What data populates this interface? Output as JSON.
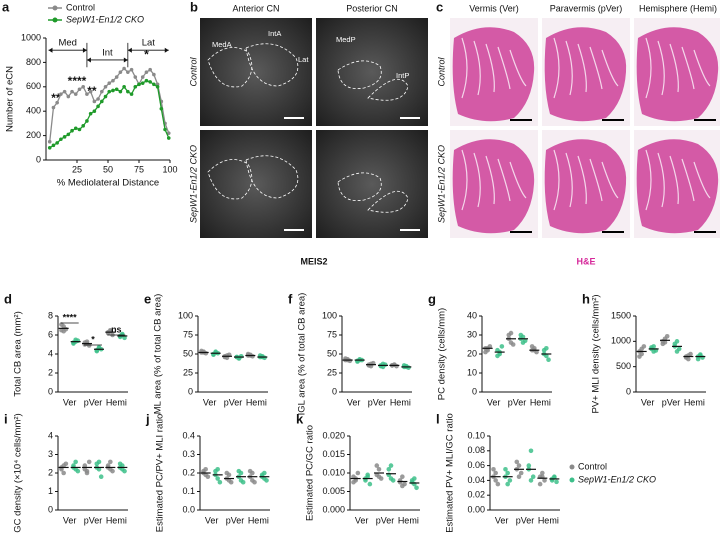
{
  "figures": [
    {
      "label": "b",
      "columns": [
        "Anterior CN",
        "Posterior CN"
      ],
      "rows": [
        "Control",
        "SepW1-En1/2 CKO"
      ],
      "regions": [
        "MedA",
        "IntA",
        "Lat",
        "MedP",
        "IntP"
      ],
      "stain": "MEIS2"
    },
    {
      "label": "c",
      "columns": [
        "Vermis (Ver)",
        "Paravermis (pVer)",
        "Hemisphere (Hemi)"
      ],
      "rows": [
        "Control",
        "SepW1-En1/2 CKO"
      ],
      "stain": "H&E"
    }
  ],
  "chart_data": [
    {
      "type": "line",
      "label": "a",
      "xlabel": "% Mediolateral Distance",
      "ylabel": "Number of eCN",
      "xlim": [
        0,
        100
      ],
      "xticks": [
        25,
        50,
        75,
        100
      ],
      "ylim": [
        0,
        1000
      ],
      "yticks": [
        0,
        200,
        400,
        600,
        800,
        1000
      ],
      "legend": "upper left",
      "regions": [
        "Med",
        "Int",
        "Lat"
      ],
      "annotations": [
        "**",
        "****",
        "**",
        "*"
      ],
      "x": [
        3,
        6,
        9,
        12,
        15,
        18,
        21,
        24,
        27,
        30,
        33,
        36,
        39,
        42,
        45,
        48,
        51,
        54,
        57,
        60,
        63,
        66,
        69,
        72,
        75,
        78,
        81,
        84,
        87,
        90,
        93,
        96,
        99
      ],
      "series": [
        {
          "name": "Control",
          "color": "#8a8a8a",
          "values": [
            150,
            430,
            470,
            540,
            560,
            520,
            560,
            540,
            580,
            600,
            540,
            560,
            480,
            500,
            560,
            600,
            630,
            650,
            680,
            720,
            750,
            720,
            740,
            680,
            620,
            680,
            720,
            740,
            700,
            620,
            480,
            300,
            220
          ]
        },
        {
          "name": "SepW1-En1/2 CKO",
          "color": "#1f9a2a",
          "values": [
            100,
            120,
            140,
            170,
            190,
            210,
            240,
            260,
            250,
            280,
            320,
            380,
            400,
            440,
            480,
            520,
            560,
            570,
            580,
            560,
            600,
            560,
            540,
            600,
            620,
            630,
            650,
            640,
            620,
            600,
            420,
            250,
            180
          ]
        }
      ]
    },
    {
      "type": "dot",
      "label": "d",
      "ylabel": "Total CB area (mm²)",
      "categories": [
        "Ver",
        "pVer",
        "Hemi"
      ],
      "ylim": [
        0,
        8
      ],
      "yticks": [
        0,
        2,
        4,
        6,
        8
      ],
      "annotations": [
        "****",
        "*",
        "ns"
      ],
      "series": [
        {
          "color": "#8a8a8a",
          "values": [
            [
              6.5,
              6.9,
              6.6,
              7.1,
              6.4
            ],
            [
              5.0,
              5.3,
              4.9,
              5.2,
              5.1
            ],
            [
              6.2,
              6.5,
              6.0,
              6.3,
              6.4
            ]
          ],
          "means": [
            6.7,
            5.1,
            6.3
          ]
        },
        {
          "color": "#3dbf8a",
          "values": [
            [
              5.2,
              5.5,
              5.4,
              5.1,
              5.3
            ],
            [
              4.4,
              4.6,
              4.5,
              4.3,
              4.7
            ],
            [
              5.8,
              6.1,
              5.7,
              5.9,
              6.0
            ]
          ],
          "means": [
            5.3,
            4.5,
            5.9
          ]
        }
      ]
    },
    {
      "type": "dot",
      "label": "e",
      "ylabel": "ML area (% of total CB area)",
      "categories": [
        "Ver",
        "pVer",
        "Hemi"
      ],
      "ylim": [
        0,
        100
      ],
      "yticks": [
        0,
        25,
        50,
        75,
        100
      ],
      "series": [
        {
          "color": "#8a8a8a",
          "values": [
            [
              52,
              53,
              51,
              54,
              52
            ],
            [
              47,
              45,
              49,
              46,
              48
            ],
            [
              48,
              49,
              47,
              50,
              48
            ]
          ],
          "means": [
            52,
            47,
            48
          ]
        },
        {
          "color": "#3dbf8a",
          "values": [
            [
              50,
              52,
              51,
              49,
              53
            ],
            [
              46,
              45,
              47,
              46,
              44
            ],
            [
              46,
              47,
              45,
              48,
              46
            ]
          ],
          "means": [
            51,
            46,
            46
          ]
        }
      ]
    },
    {
      "type": "dot",
      "label": "f",
      "ylabel": "IGL area (% of total CB area)",
      "categories": [
        "Ver",
        "pVer",
        "Hemi"
      ],
      "ylim": [
        0,
        100
      ],
      "yticks": [
        0,
        25,
        50,
        75,
        100
      ],
      "series": [
        {
          "color": "#8a8a8a",
          "values": [
            [
              42,
              43,
              41,
              44,
              42
            ],
            [
              36,
              34,
              38,
              35,
              37
            ],
            [
              35,
              36,
              34,
              35,
              36
            ]
          ],
          "means": [
            42,
            36,
            35
          ]
        },
        {
          "color": "#3dbf8a",
          "values": [
            [
              41,
              43,
              42,
              40,
              42
            ],
            [
              35,
              33,
              36,
              34,
              37
            ],
            [
              33,
              34,
              32,
              35,
              33
            ]
          ],
          "means": [
            42,
            35,
            33
          ]
        }
      ]
    },
    {
      "type": "dot",
      "label": "g",
      "ylabel": "PC density (cells/mm)",
      "categories": [
        "Ver",
        "pVer",
        "Hemi"
      ],
      "ylim": [
        0,
        40
      ],
      "yticks": [
        0,
        10,
        20,
        30,
        40
      ],
      "series": [
        {
          "color": "#8a8a8a",
          "values": [
            [
              23,
              22,
              24,
              21,
              23
            ],
            [
              28,
              31,
              25,
              30,
              26
            ],
            [
              22,
              23,
              21,
              24,
              22
            ]
          ],
          "means": [
            23,
            28,
            22
          ]
        },
        {
          "color": "#3dbf8a",
          "values": [
            [
              22,
              20,
              24,
              19,
              21
            ],
            [
              28,
              29,
              27,
              30,
              26
            ],
            [
              20,
              23,
              17,
              22,
              19
            ]
          ],
          "means": [
            21,
            28,
            20
          ]
        }
      ]
    },
    {
      "type": "dot",
      "label": "h",
      "ylabel": "PV+ MLI density (cells/mm²)",
      "categories": [
        "Ver",
        "pVer",
        "Hemi"
      ],
      "ylim": [
        0,
        1500
      ],
      "yticks": [
        0,
        500,
        1000,
        1500
      ],
      "series": [
        {
          "color": "#8a8a8a",
          "values": [
            [
              800,
              750,
              900,
              700,
              850
            ],
            [
              1000,
              1050,
              1100,
              950,
              980
            ],
            [
              700,
              650,
              750,
              680,
              720
            ]
          ],
          "means": [
            800,
            1020,
            700
          ]
        },
        {
          "color": "#3dbf8a",
          "values": [
            [
              850,
              900,
              820,
              880,
              800
            ],
            [
              900,
              1000,
              850,
              950,
              800
            ],
            [
              700,
              720,
              680,
              650,
              740
            ]
          ],
          "means": [
            850,
            900,
            700
          ]
        }
      ]
    },
    {
      "type": "dot",
      "label": "i",
      "ylabel": "GC density (×10⁴ cells/mm²)",
      "categories": [
        "Ver",
        "pVer",
        "Hemi"
      ],
      "ylim": [
        0,
        4
      ],
      "yticks": [
        0,
        1,
        2,
        3,
        4
      ],
      "series": [
        {
          "color": "#8a8a8a",
          "values": [
            [
              2.3,
              2.0,
              2.5,
              2.2,
              2.4
            ],
            [
              2.4,
              2.1,
              2.6,
              2.2,
              2.0
            ],
            [
              2.3,
              2.6,
              2.1,
              2.4,
              2.2
            ]
          ],
          "means": [
            2.3,
            2.3,
            2.3
          ]
        },
        {
          "color": "#3dbf8a",
          "values": [
            [
              2.3,
              2.6,
              2.1,
              2.4,
              2.2
            ],
            [
              2.3,
              2.6,
              1.8,
              2.5,
              2.2
            ],
            [
              2.3,
              2.4,
              2.1,
              2.5,
              2.2
            ]
          ],
          "means": [
            2.3,
            2.3,
            2.3
          ]
        }
      ]
    },
    {
      "type": "dot",
      "label": "j",
      "ylabel": "Estimated PC/PV+ MLI ratio",
      "categories": [
        "Ver",
        "pVer",
        "Hemi"
      ],
      "ylim": [
        0,
        0.4
      ],
      "yticks": [
        {
          "value": 0,
          "label": "0.0"
        },
        0.1,
        0.2,
        0.3,
        0.4
      ],
      "series": [
        {
          "color": "#8a8a8a",
          "values": [
            [
              0.2,
              0.22,
              0.18,
              0.21,
              0.19
            ],
            [
              0.17,
              0.19,
              0.15,
              0.2,
              0.16
            ],
            [
              0.18,
              0.2,
              0.15,
              0.21,
              0.16
            ]
          ],
          "means": [
            0.2,
            0.17,
            0.18
          ]
        },
        {
          "color": "#3dbf8a",
          "values": [
            [
              0.19,
              0.22,
              0.15,
              0.21,
              0.17
            ],
            [
              0.18,
              0.2,
              0.15,
              0.21,
              0.16
            ],
            [
              0.18,
              0.2,
              0.16,
              0.19,
              0.17
            ]
          ],
          "means": [
            0.19,
            0.18,
            0.18
          ]
        }
      ]
    },
    {
      "type": "dot",
      "label": "k",
      "ylabel": "Estimated PC/GC ratio",
      "categories": [
        "Ver",
        "pVer",
        "Hemi"
      ],
      "ylim": [
        0,
        0.02
      ],
      "yticks": [
        {
          "value": 0,
          "label": "0.000"
        },
        0.005,
        {
          "value": 0.01,
          "label": "0.010"
        },
        0.015,
        {
          "value": 0.02,
          "label": "0.020"
        }
      ],
      "series": [
        {
          "color": "#8a8a8a",
          "values": [
            [
              0.009,
              0.008,
              0.01,
              0.0075,
              0.0085
            ],
            [
              0.0095,
              0.011,
              0.0085,
              0.012,
              0.009
            ],
            [
              0.0075,
              0.009,
              0.007,
              0.008,
              0.0065
            ]
          ],
          "means": [
            0.0085,
            0.01,
            0.0077
          ]
        },
        {
          "color": "#3dbf8a",
          "values": [
            [
              0.0085,
              0.009,
              0.007,
              0.008,
              0.0095
            ],
            [
              0.0095,
              0.012,
              0.008,
              0.011,
              0.0085
            ],
            [
              0.0075,
              0.0085,
              0.006,
              0.008,
              0.007
            ]
          ],
          "means": [
            0.0085,
            0.0098,
            0.0073
          ]
        }
      ]
    },
    {
      "type": "dot",
      "label": "l",
      "ylabel": "Estimated PV+ MLI/GC ratio",
      "categories": [
        "Ver",
        "pVer",
        "Hemi"
      ],
      "ylim": [
        0,
        0.1
      ],
      "yticks": [
        {
          "value": 0,
          "label": "0.00"
        },
        0.02,
        0.04,
        0.06,
        0.08,
        {
          "value": 0.1,
          "label": "0.10"
        }
      ],
      "legend": "right",
      "series": [
        {
          "name": "Control",
          "color": "#8a8a8a",
          "values": [
            [
              0.045,
              0.05,
              0.035,
              0.055,
              0.04
            ],
            [
              0.055,
              0.06,
              0.05,
              0.065,
              0.045
            ],
            [
              0.045,
              0.05,
              0.04,
              0.035,
              0.045
            ]
          ],
          "means": [
            0.045,
            0.055,
            0.043
          ]
        },
        {
          "name": "SepW1-En1/2 CKO",
          "color": "#3dbf8a",
          "values": [
            [
              0.045,
              0.05,
              0.04,
              0.055,
              0.035
            ],
            [
              0.055,
              0.08,
              0.045,
              0.06,
              0.04
            ],
            [
              0.042,
              0.045,
              0.038,
              0.04,
              0.044
            ]
          ],
          "means": [
            0.045,
            0.055,
            0.042
          ]
        }
      ]
    }
  ]
}
